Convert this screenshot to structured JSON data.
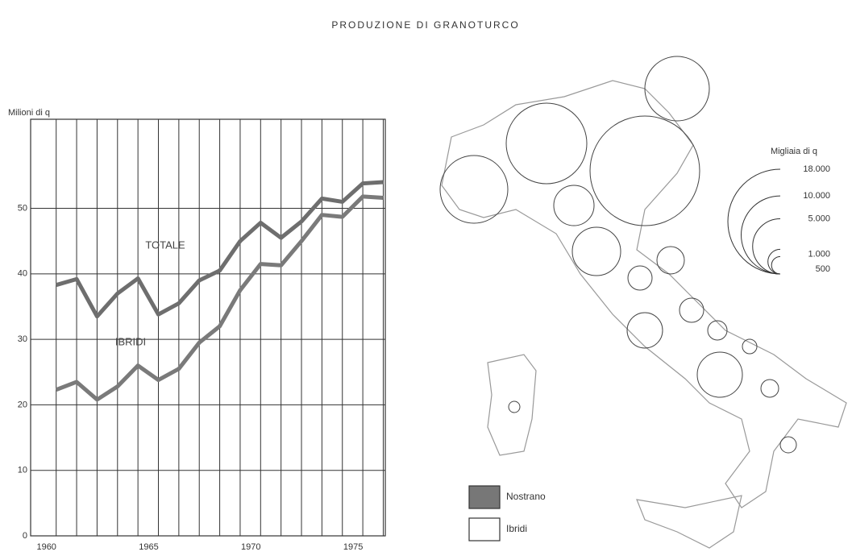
{
  "chart_data": {
    "type": "line",
    "title": "PRODUZIONE DI GRANOTURCO",
    "y_label": "Milioni di q",
    "x": [
      1960,
      1961,
      1962,
      1963,
      1964,
      1965,
      1966,
      1967,
      1968,
      1969,
      1970,
      1971,
      1972,
      1973,
      1974,
      1975,
      1976
    ],
    "series": [
      {
        "name": "TOTALE",
        "color": "#6e6e6e",
        "values": [
          38.3,
          39.2,
          33.5,
          37,
          39.3,
          33.8,
          35.5,
          39,
          40.5,
          45,
          47.8,
          45.5,
          48,
          51.5,
          51,
          53.8,
          54
        ]
      },
      {
        "name": "IBRIDI",
        "color": "#7a7a7a",
        "values": [
          22.3,
          23.5,
          20.8,
          22.8,
          26,
          23.8,
          25.5,
          29.5,
          32,
          37.5,
          41.5,
          41.3,
          45,
          49,
          48.7,
          51.8,
          51.6
        ]
      }
    ],
    "xlim": [
      1958.75,
      1976.1
    ],
    "xticks": [
      1960,
      1965,
      1970,
      1975
    ],
    "ylim": [
      0,
      63.6
    ],
    "yticks": [
      0,
      10,
      20,
      30,
      40,
      50
    ],
    "grid": true,
    "map": {
      "size_legend_title": "Migliaia di q",
      "size_legend": [
        {
          "value": 18000,
          "label": "18.000"
        },
        {
          "value": 10000,
          "label": "10.000"
        },
        {
          "value": 5000,
          "label": "5.000"
        },
        {
          "value": 1000,
          "label": "1.000"
        },
        500
      ],
      "legend": [
        "Nostrano",
        "Ibridi"
      ]
    }
  }
}
